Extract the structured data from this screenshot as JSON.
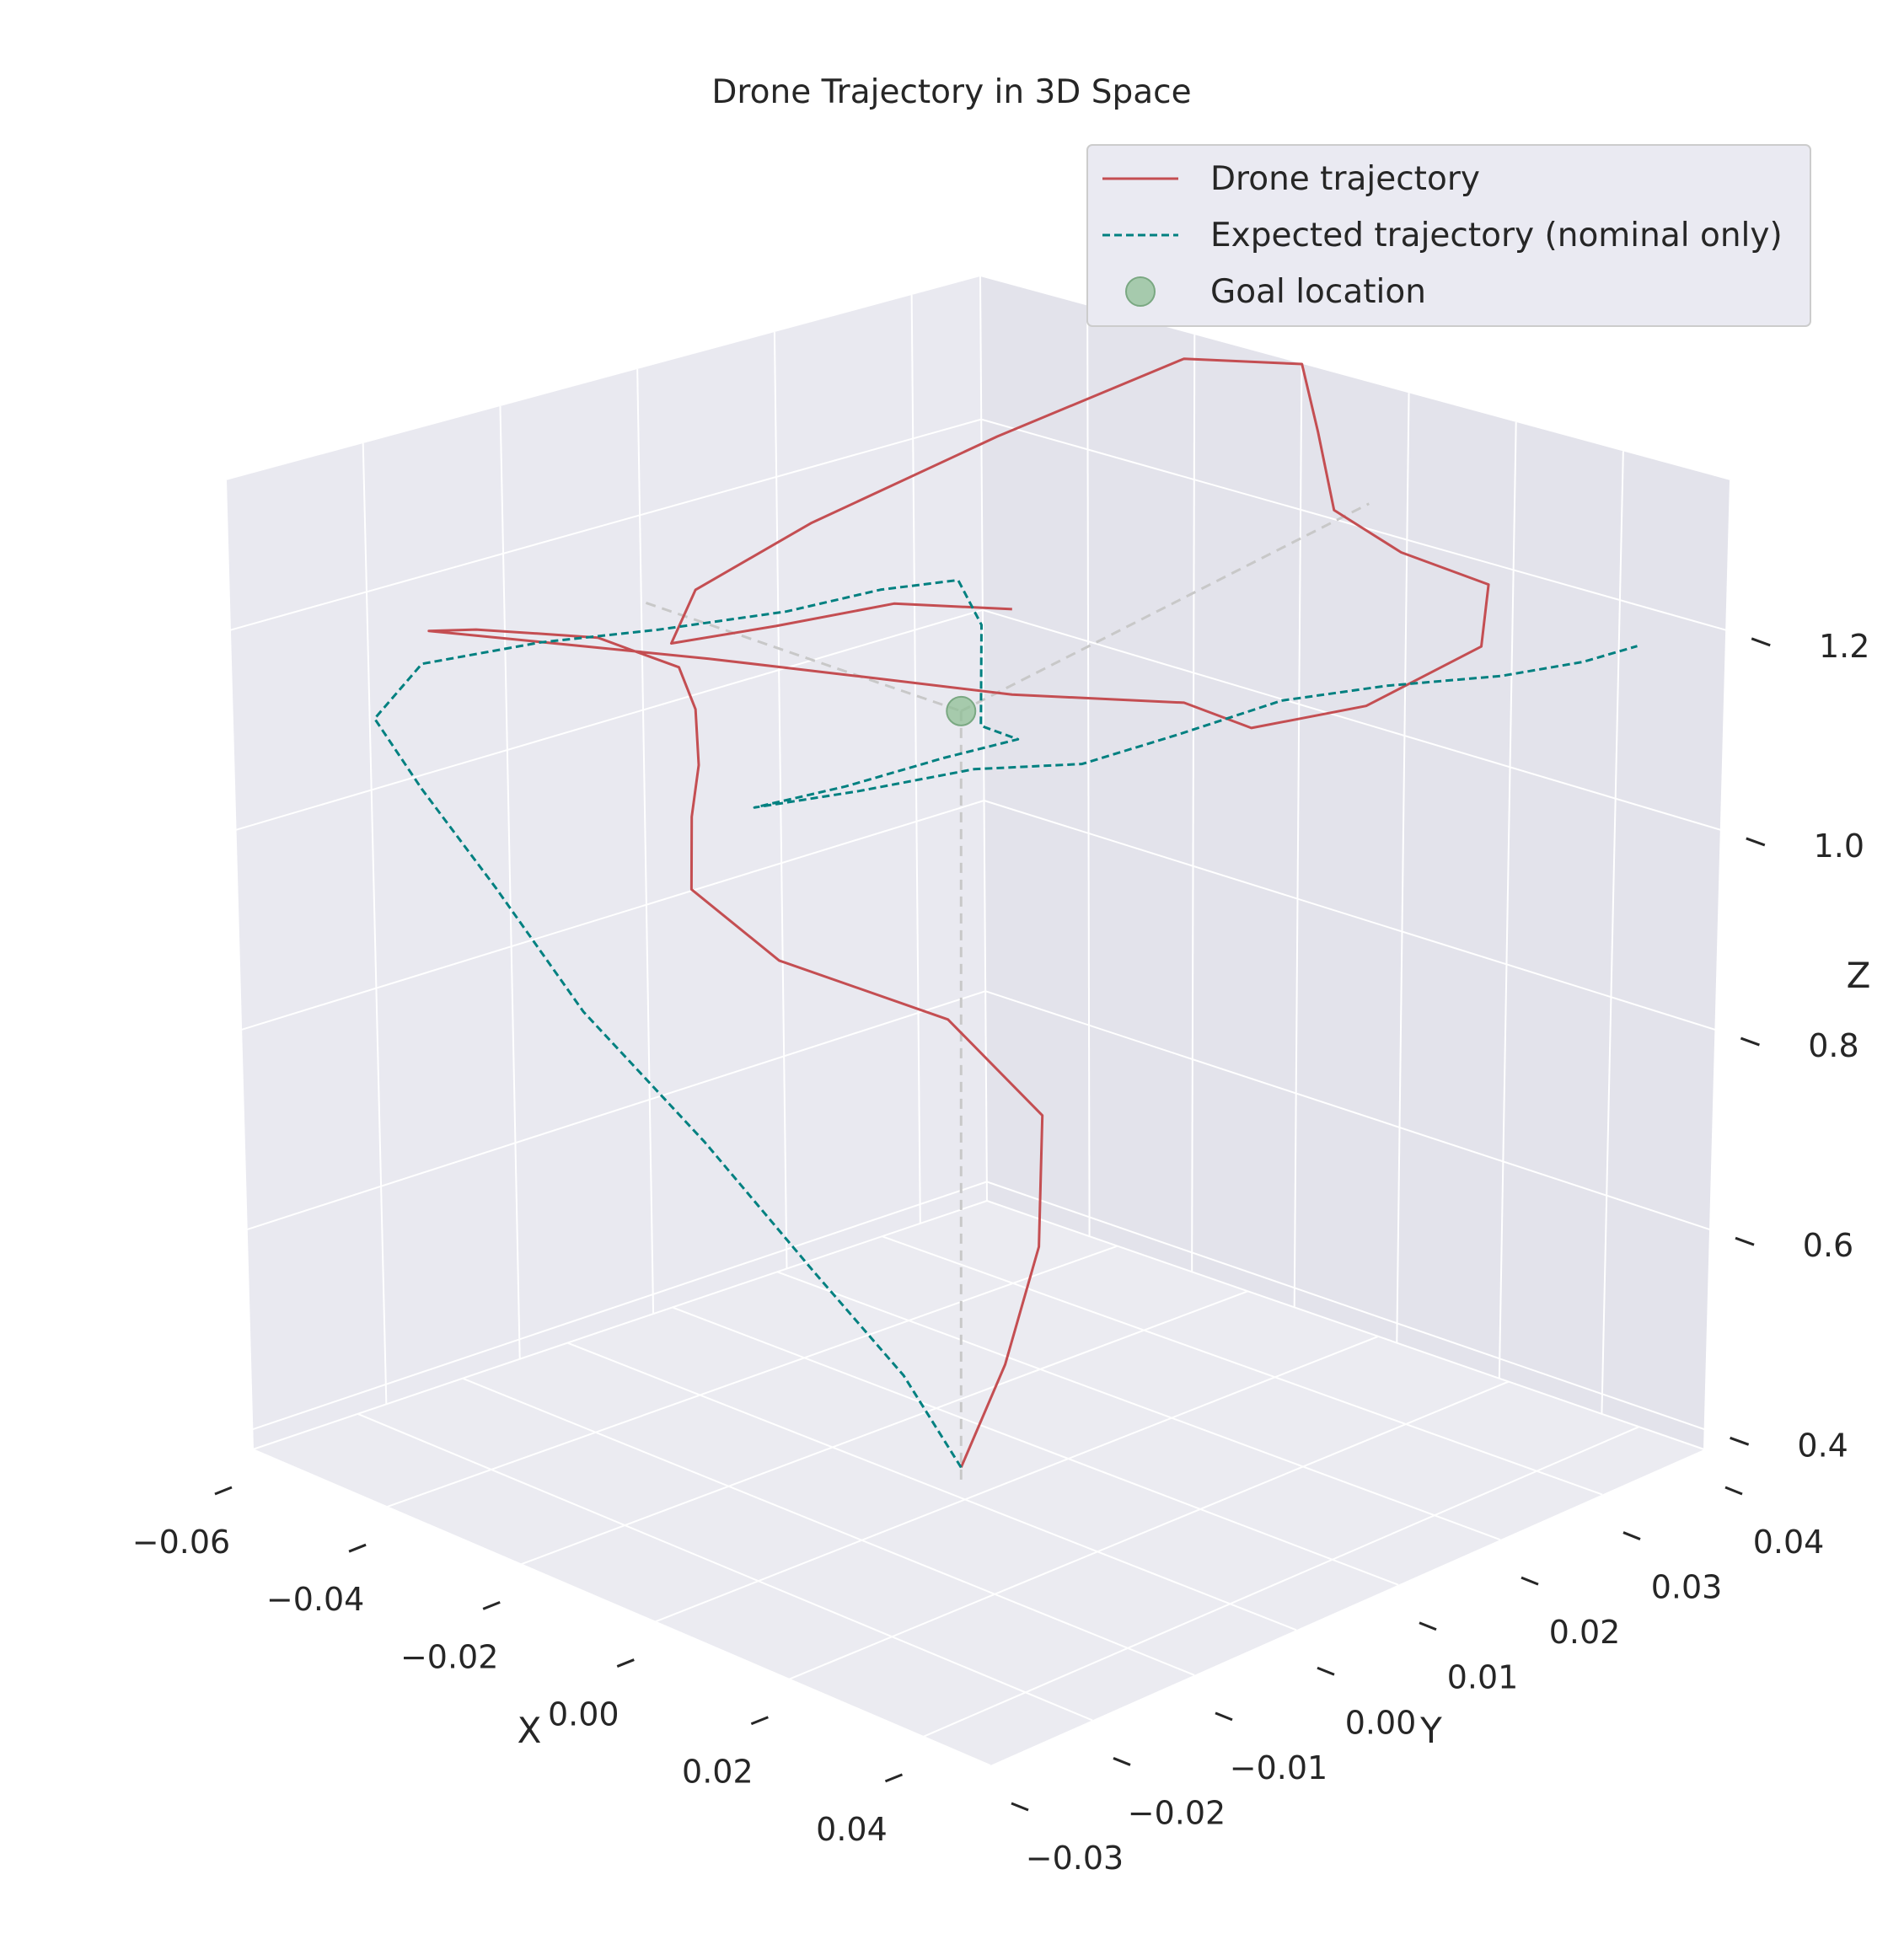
{
  "chart_data": {
    "type": "line3d",
    "title": "Drone Trajectory in 3D Space",
    "xlabel": "X",
    "ylabel": "Y",
    "zlabel": "Z",
    "xlim": [
      -0.06,
      0.05
    ],
    "ylim": [
      -0.03,
      0.04
    ],
    "zlim": [
      0.38,
      1.35
    ],
    "x_ticks": [
      "−0.06",
      "−0.04",
      "−0.02",
      "0.00",
      "0.02",
      "0.04"
    ],
    "y_ticks": [
      "−0.03",
      "−0.02",
      "−0.01",
      "0.00",
      "0.01",
      "0.02",
      "0.03",
      "0.04"
    ],
    "z_ticks": [
      "0.4",
      "0.6",
      "0.8",
      "1.0",
      "1.2"
    ],
    "grid": true,
    "legend_position": "top-right",
    "legend": [
      {
        "label": "Drone trajectory",
        "style": "solid",
        "color": "#c44e52"
      },
      {
        "label": "Expected trajectory (nominal only)",
        "style": "dashed",
        "color": "#008080"
      },
      {
        "label": "Goal location",
        "style": "marker",
        "color": "#8fbf96"
      }
    ],
    "goal": {
      "x": 0.0,
      "y": 0.0,
      "z": 1.2
    },
    "series": [
      {
        "name": "Drone trajectory",
        "color": "#c44e52",
        "points": [
          [
            0.0,
            0.0,
            0.4
          ],
          [
            0.002,
            0.003,
            0.5
          ],
          [
            0.004,
            0.005,
            0.62
          ],
          [
            0.003,
            0.006,
            0.75
          ],
          [
            -0.005,
            0.002,
            0.85
          ],
          [
            -0.018,
            -0.006,
            0.92
          ],
          [
            -0.025,
            -0.01,
            1.0
          ],
          [
            -0.028,
            -0.008,
            1.06
          ],
          [
            -0.03,
            -0.006,
            1.1
          ],
          [
            -0.032,
            -0.005,
            1.15
          ],
          [
            -0.036,
            -0.004,
            1.18
          ],
          [
            -0.04,
            -0.006,
            1.2
          ],
          [
            -0.042,
            -0.008,
            1.22
          ],
          [
            -0.045,
            -0.012,
            1.24
          ],
          [
            -0.048,
            -0.016,
            1.26
          ],
          [
            -0.052,
            -0.018,
            1.26
          ],
          [
            -0.046,
            -0.015,
            1.25
          ],
          [
            -0.03,
            -0.005,
            1.21
          ],
          [
            -0.015,
            0.0,
            1.2
          ],
          [
            0.0,
            0.005,
            1.19
          ],
          [
            0.015,
            0.012,
            1.18
          ],
          [
            0.022,
            0.014,
            1.16
          ],
          [
            0.03,
            0.02,
            1.17
          ],
          [
            0.035,
            0.028,
            1.2
          ],
          [
            0.03,
            0.032,
            1.23
          ],
          [
            0.02,
            0.03,
            1.25
          ],
          [
            0.01,
            0.03,
            1.27
          ],
          [
            0.0,
            0.035,
            1.3
          ],
          [
            -0.01,
            0.04,
            1.32
          ],
          [
            -0.02,
            0.035,
            1.33
          ],
          [
            -0.025,
            0.02,
            1.32
          ],
          [
            -0.03,
            0.005,
            1.3
          ],
          [
            -0.032,
            -0.005,
            1.28
          ],
          [
            -0.028,
            -0.01,
            1.26
          ],
          [
            -0.02,
            -0.005,
            1.27
          ],
          [
            -0.01,
            0.0,
            1.29
          ],
          [
            0.0,
            0.005,
            1.28
          ]
        ]
      },
      {
        "name": "Expected trajectory (nominal only)",
        "color": "#008080",
        "points": [
          [
            0.0,
            0.0,
            0.4
          ],
          [
            -0.004,
            -0.003,
            0.5
          ],
          [
            -0.01,
            -0.008,
            0.62
          ],
          [
            -0.02,
            -0.012,
            0.75
          ],
          [
            -0.032,
            -0.016,
            0.88
          ],
          [
            -0.042,
            -0.018,
            1.0
          ],
          [
            -0.05,
            -0.02,
            1.1
          ],
          [
            -0.054,
            -0.022,
            1.18
          ],
          [
            -0.05,
            -0.02,
            1.24
          ],
          [
            -0.04,
            -0.015,
            1.26
          ],
          [
            -0.03,
            -0.01,
            1.27
          ],
          [
            -0.02,
            -0.004,
            1.28
          ],
          [
            -0.012,
            0.0,
            1.3
          ],
          [
            -0.005,
            0.003,
            1.31
          ],
          [
            0.0,
            0.002,
            1.28
          ],
          [
            0.003,
            0.0,
            1.24
          ],
          [
            0.006,
            -0.002,
            1.21
          ],
          [
            0.01,
            -0.001,
            1.2
          ],
          [
            0.005,
            -0.005,
            1.19
          ],
          [
            -0.002,
            -0.01,
            1.17
          ],
          [
            -0.008,
            -0.015,
            1.16
          ],
          [
            0.0,
            -0.01,
            1.17
          ],
          [
            0.008,
            -0.004,
            1.18
          ],
          [
            0.015,
            0.002,
            1.17
          ],
          [
            0.02,
            0.008,
            1.18
          ],
          [
            0.025,
            0.015,
            1.19
          ],
          [
            0.03,
            0.022,
            1.18
          ],
          [
            0.035,
            0.03,
            1.16
          ],
          [
            0.038,
            0.036,
            1.15
          ],
          [
            0.04,
            0.04,
            1.15
          ]
        ]
      }
    ]
  }
}
